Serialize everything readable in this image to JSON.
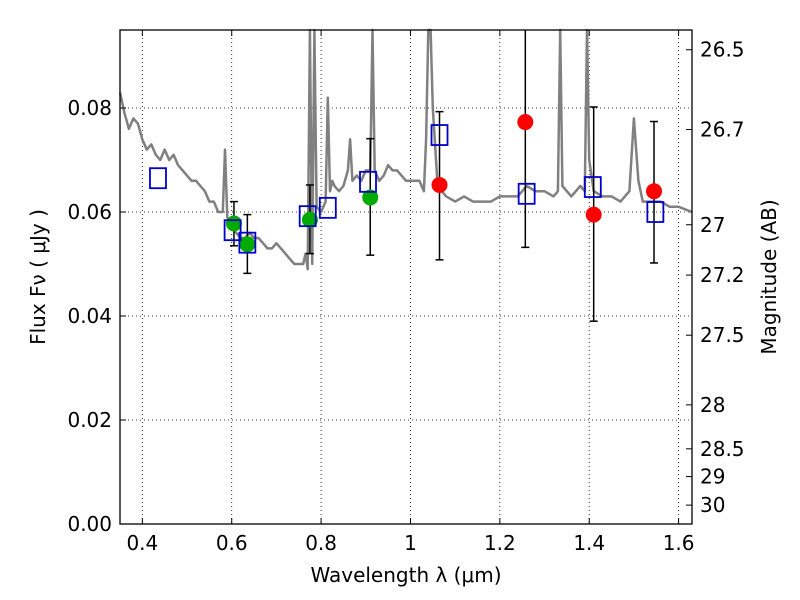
{
  "chart_data": {
    "type": "scatter",
    "title": "",
    "xlabel": "Wavelength  λ (μm)",
    "ylabel": "Flux  Fν  ( μJy )",
    "ylabel_right": "Magnitude (AB)",
    "xlim": [
      0.35,
      1.63
    ],
    "ylim": [
      0.0,
      0.095
    ],
    "xticks": [
      0.4,
      0.6,
      0.8,
      1.0,
      1.2,
      1.4,
      1.6
    ],
    "xtick_labels": [
      "0.4",
      "0.6",
      "0.8",
      "1",
      "1.2",
      "1.4",
      "1.6"
    ],
    "yticks": [
      0.0,
      0.02,
      0.04,
      0.06,
      0.08
    ],
    "ytick_labels": [
      "0.00",
      "0.02",
      "0.04",
      "0.06",
      "0.08"
    ],
    "right_ticks": [
      {
        "label": "26.5",
        "mag": 26.5
      },
      {
        "label": "26.7",
        "mag": 26.7
      },
      {
        "label": "27",
        "mag": 27.0
      },
      {
        "label": "27.2",
        "mag": 27.2
      },
      {
        "label": "27.5",
        "mag": 27.5
      },
      {
        "label": "28",
        "mag": 28.0
      },
      {
        "label": "28.5",
        "mag": 28.5
      },
      {
        "label": "29",
        "mag": 29.0
      },
      {
        "label": "30",
        "mag": 30.0
      }
    ],
    "grid": true,
    "colors": {
      "model": "#808080",
      "green": "#00aa00",
      "red": "#ff0000",
      "blue": "#0000cc",
      "axis": "#000000"
    },
    "model_spectrum": {
      "x": [
        0.35,
        0.36,
        0.37,
        0.38,
        0.39,
        0.4,
        0.41,
        0.42,
        0.43,
        0.44,
        0.45,
        0.46,
        0.47,
        0.48,
        0.49,
        0.5,
        0.51,
        0.52,
        0.53,
        0.54,
        0.55,
        0.56,
        0.57,
        0.58,
        0.585,
        0.59,
        0.595,
        0.6,
        0.61,
        0.62,
        0.63,
        0.64,
        0.65,
        0.66,
        0.67,
        0.68,
        0.69,
        0.7,
        0.71,
        0.72,
        0.73,
        0.74,
        0.75,
        0.76,
        0.765,
        0.77,
        0.775,
        0.78,
        0.785,
        0.79,
        0.8,
        0.81,
        0.815,
        0.82,
        0.825,
        0.83,
        0.84,
        0.85,
        0.86,
        0.865,
        0.87,
        0.88,
        0.89,
        0.9,
        0.91,
        0.915,
        0.92,
        0.925,
        0.93,
        0.94,
        0.95,
        0.96,
        0.97,
        0.98,
        0.99,
        1.0,
        1.01,
        1.02,
        1.03,
        1.035,
        1.04,
        1.045,
        1.05,
        1.06,
        1.07,
        1.08,
        1.1,
        1.12,
        1.14,
        1.16,
        1.18,
        1.2,
        1.22,
        1.24,
        1.26,
        1.28,
        1.3,
        1.32,
        1.33,
        1.335,
        1.34,
        1.36,
        1.38,
        1.39,
        1.395,
        1.4,
        1.41,
        1.43,
        1.45,
        1.47,
        1.49,
        1.5,
        1.51,
        1.52,
        1.54,
        1.56,
        1.58,
        1.6,
        1.63
      ],
      "y": [
        0.083,
        0.079,
        0.076,
        0.078,
        0.077,
        0.074,
        0.072,
        0.073,
        0.071,
        0.07,
        0.072,
        0.07,
        0.071,
        0.069,
        0.068,
        0.067,
        0.066,
        0.066,
        0.065,
        0.064,
        0.062,
        0.062,
        0.06,
        0.06,
        0.072,
        0.059,
        0.058,
        0.057,
        0.056,
        0.055,
        0.055,
        0.056,
        0.055,
        0.055,
        0.054,
        0.053,
        0.053,
        0.054,
        0.053,
        0.052,
        0.051,
        0.05,
        0.05,
        0.05,
        0.052,
        0.049,
        0.095,
        0.05,
        0.095,
        0.061,
        0.06,
        0.062,
        0.082,
        0.064,
        0.066,
        0.065,
        0.064,
        0.065,
        0.068,
        0.074,
        0.066,
        0.067,
        0.066,
        0.068,
        0.068,
        0.095,
        0.068,
        0.067,
        0.066,
        0.067,
        0.069,
        0.068,
        0.068,
        0.067,
        0.066,
        0.066,
        0.066,
        0.066,
        0.064,
        0.074,
        0.095,
        0.095,
        0.08,
        0.066,
        0.064,
        0.063,
        0.062,
        0.063,
        0.062,
        0.062,
        0.062,
        0.063,
        0.063,
        0.063,
        0.065,
        0.064,
        0.064,
        0.063,
        0.064,
        0.095,
        0.065,
        0.063,
        0.065,
        0.064,
        0.095,
        0.07,
        0.064,
        0.063,
        0.063,
        0.062,
        0.064,
        0.078,
        0.066,
        0.062,
        0.062,
        0.062,
        0.061,
        0.061,
        0.06
      ]
    },
    "series": [
      {
        "marker": "circle",
        "color": "green",
        "points": [
          {
            "x": 0.605,
            "y": 0.0578,
            "err_low": 0.0535,
            "err_high": 0.062
          },
          {
            "x": 0.635,
            "y": 0.0538,
            "err_low": 0.0482,
            "err_high": 0.0595
          },
          {
            "x": 0.775,
            "y": 0.0585,
            "err_low": 0.052,
            "err_high": 0.0652
          },
          {
            "x": 0.91,
            "y": 0.0628,
            "err_low": 0.0517,
            "err_high": 0.0741
          }
        ]
      },
      {
        "marker": "circle",
        "color": "red",
        "points": [
          {
            "x": 1.065,
            "y": 0.0652,
            "err_low": 0.0508,
            "err_high": 0.0793
          },
          {
            "x": 1.257,
            "y": 0.0773,
            "err_low": 0.0532,
            "err_high": 0.095
          },
          {
            "x": 1.41,
            "y": 0.0595,
            "err_low": 0.039,
            "err_high": 0.0802
          },
          {
            "x": 1.545,
            "y": 0.064,
            "err_low": 0.0502,
            "err_high": 0.0774
          }
        ]
      },
      {
        "marker": "open-square",
        "color": "blue",
        "points": [
          {
            "x": 0.435,
            "y": 0.0665
          },
          {
            "x": 0.602,
            "y": 0.0565
          },
          {
            "x": 0.635,
            "y": 0.0541
          },
          {
            "x": 0.77,
            "y": 0.0592
          },
          {
            "x": 0.815,
            "y": 0.0608
          },
          {
            "x": 0.905,
            "y": 0.0658
          },
          {
            "x": 1.065,
            "y": 0.0748
          },
          {
            "x": 1.26,
            "y": 0.0635
          },
          {
            "x": 1.408,
            "y": 0.0648
          },
          {
            "x": 1.548,
            "y": 0.06
          }
        ]
      }
    ]
  }
}
